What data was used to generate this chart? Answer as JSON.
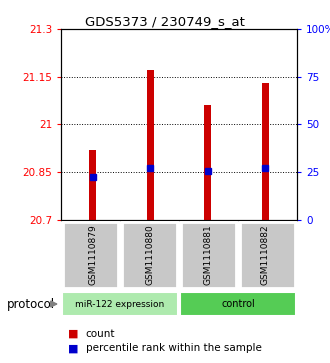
{
  "title": "GDS5373 / 230749_s_at",
  "samples": [
    "GSM1110879",
    "GSM1110880",
    "GSM1110881",
    "GSM1110882"
  ],
  "bar_values": [
    20.92,
    21.17,
    21.06,
    21.13
  ],
  "percentile_values": [
    20.835,
    20.863,
    20.853,
    20.863
  ],
  "y_min": 20.7,
  "y_max": 21.3,
  "y_ticks_left": [
    20.7,
    20.85,
    21.0,
    21.15,
    21.3
  ],
  "y_tick_labels_left": [
    "20.7",
    "20.85",
    "21",
    "21.15",
    "21.3"
  ],
  "y_ticks_right_pct": [
    0,
    25,
    50,
    75,
    100
  ],
  "y_tick_labels_right": [
    "0",
    "25",
    "50",
    "75",
    "100%"
  ],
  "bar_color": "#CC0000",
  "percentile_color": "#0000CC",
  "bar_bottom": 20.7,
  "bar_width": 0.12,
  "legend_count": "count",
  "legend_percentile": "percentile rank within the sample",
  "protocol_label": "protocol",
  "group1_label": "miR-122 expression",
  "group2_label": "control",
  "group1_color": "#AEEAAE",
  "group2_color": "#55CC55",
  "sample_box_color": "#C8C8C8",
  "x_positions": [
    0,
    1,
    2,
    3
  ]
}
